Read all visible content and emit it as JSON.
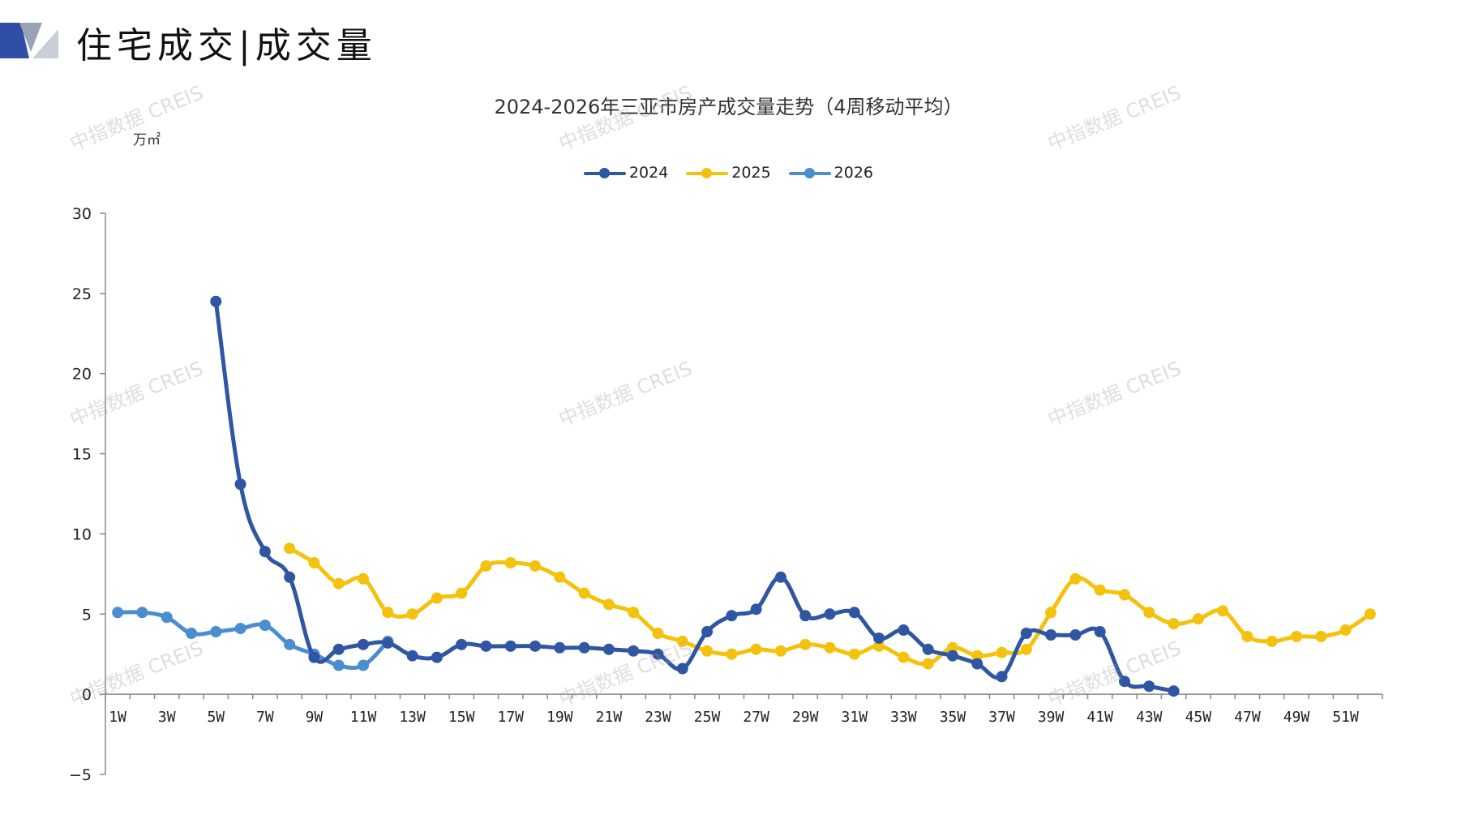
{
  "header": {
    "title": "住宅成交|成交量",
    "logo_colors": [
      "#2f4fa6",
      "#9aa3b5",
      "#c9ced9"
    ]
  },
  "watermark": "中指数据 CREIS",
  "chart_data": {
    "type": "line",
    "title": "2024-2026年三亚市房产成交量走势（4周移动平均）",
    "unit": "万㎡",
    "xlabel": "",
    "ylabel": "",
    "ylim": [
      -5,
      30
    ],
    "yticks": [
      -5,
      0,
      5,
      10,
      15,
      20,
      25,
      30
    ],
    "grid": false,
    "legend": "top-center",
    "x_categories": [
      "1W",
      "2W",
      "3W",
      "4W",
      "5W",
      "6W",
      "7W",
      "8W",
      "9W",
      "10W",
      "11W",
      "12W",
      "13W",
      "14W",
      "15W",
      "16W",
      "17W",
      "18W",
      "19W",
      "20W",
      "21W",
      "22W",
      "23W",
      "24W",
      "25W",
      "26W",
      "27W",
      "28W",
      "29W",
      "30W",
      "31W",
      "32W",
      "33W",
      "34W",
      "35W",
      "36W",
      "37W",
      "38W",
      "39W",
      "40W",
      "41W",
      "42W",
      "43W",
      "44W",
      "45W",
      "46W",
      "47W",
      "48W",
      "49W",
      "50W",
      "51W",
      "52W"
    ],
    "x_tick_labels": [
      "1W",
      "3W",
      "5W",
      "7W",
      "9W",
      "11W",
      "13W",
      "15W",
      "17W",
      "19W",
      "21W",
      "23W",
      "25W",
      "27W",
      "29W",
      "31W",
      "33W",
      "35W",
      "37W",
      "39W",
      "41W",
      "43W",
      "45W",
      "47W",
      "49W",
      "51W"
    ],
    "series": [
      {
        "name": "2024",
        "color": "#2e56a2",
        "start_week": 5,
        "values": [
          24.5,
          13.1,
          8.9,
          7.3,
          2.3,
          2.8,
          3.1,
          3.2,
          2.4,
          2.3,
          3.1,
          3.0,
          3.0,
          3.0,
          2.9,
          2.9,
          2.8,
          2.7,
          2.5,
          1.6,
          3.9,
          4.9,
          5.3,
          7.3,
          4.9,
          5.0,
          5.1,
          3.5,
          4.0,
          2.8,
          2.4,
          1.9,
          1.1,
          3.8,
          3.7,
          3.7,
          3.9,
          0.8,
          0.5,
          0.2
        ]
      },
      {
        "name": "2025",
        "color": "#f4c20d",
        "start_week": 8,
        "values": [
          9.1,
          8.2,
          6.9,
          7.2,
          5.1,
          5.0,
          6.0,
          6.3,
          8.0,
          8.2,
          8.0,
          7.3,
          6.3,
          5.6,
          5.1,
          3.8,
          3.3,
          2.7,
          2.5,
          2.8,
          2.7,
          3.1,
          2.9,
          2.5,
          3.0,
          2.3,
          1.9,
          2.9,
          2.4,
          2.6,
          2.8,
          5.1,
          7.2,
          6.5,
          6.2,
          5.1,
          4.4,
          4.7,
          5.2,
          3.6,
          3.3,
          3.6,
          3.6,
          4.0,
          5.0
        ]
      },
      {
        "name": "2026",
        "color": "#4a8ed0",
        "start_week": 1,
        "values": [
          5.1,
          5.1,
          4.8,
          3.8,
          3.9,
          4.1,
          4.3,
          3.1,
          2.5,
          1.8,
          1.8,
          3.3
        ]
      }
    ]
  }
}
